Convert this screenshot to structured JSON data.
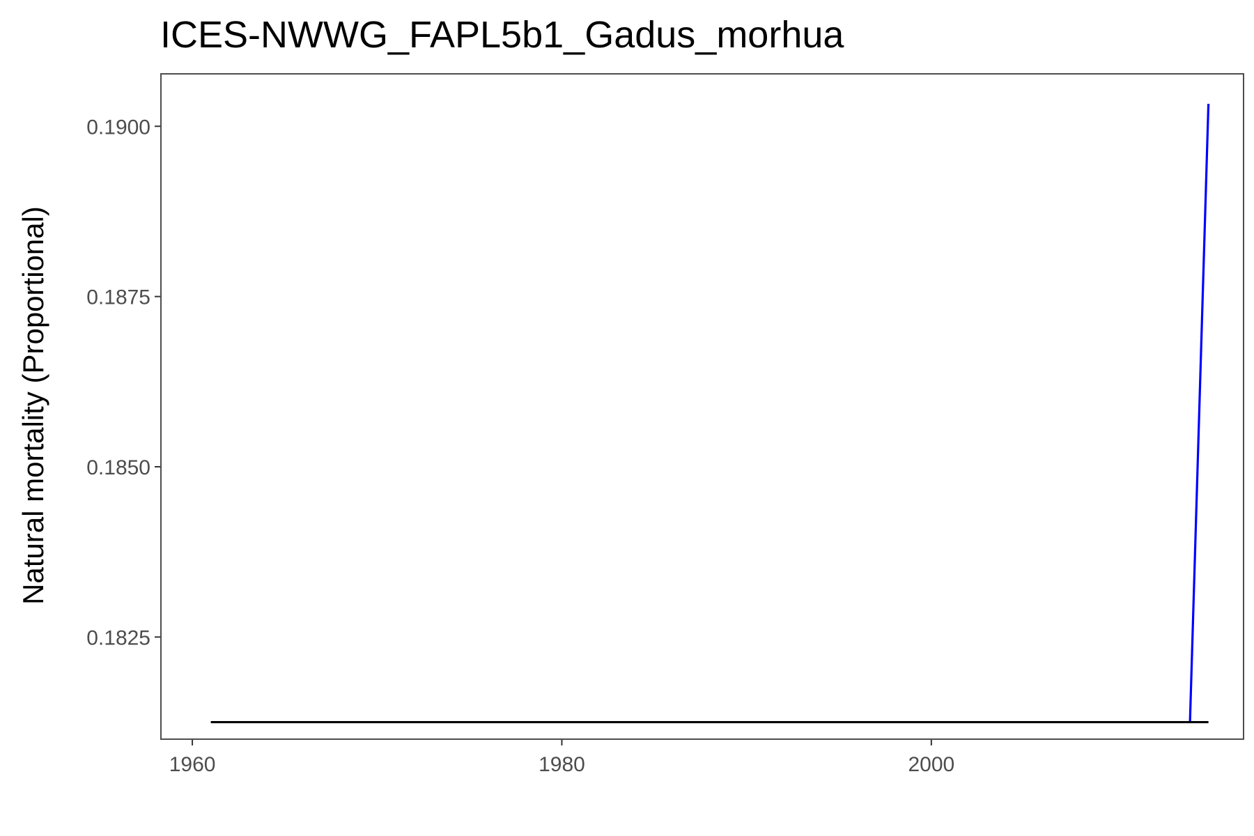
{
  "chart_data": {
    "type": "line",
    "title": "ICES-NWWG_FAPL5b1_Gadus_morhua",
    "xlabel": "",
    "ylabel": "Natural mortality (Proportional)",
    "xlim": [
      1958.3,
      2016.9
    ],
    "ylim": [
      0.181,
      0.19077
    ],
    "x_ticks": [
      1960,
      1980,
      2000
    ],
    "x_tick_labels": [
      "1960",
      "1980",
      "2000"
    ],
    "y_ticks": [
      0.1825,
      0.185,
      0.1875,
      0.19
    ],
    "y_tick_labels": [
      "0.1825",
      "0.1850",
      "0.1875",
      "0.1900"
    ],
    "grid": false,
    "legend": "none",
    "series": [
      {
        "color": "#000000",
        "x": [
          1961,
          2015
        ],
        "y": [
          0.18125,
          0.18125
        ]
      },
      {
        "color": "#0000ff",
        "x": [
          2014,
          2015
        ],
        "y": [
          0.18125,
          0.19033
        ]
      }
    ]
  }
}
